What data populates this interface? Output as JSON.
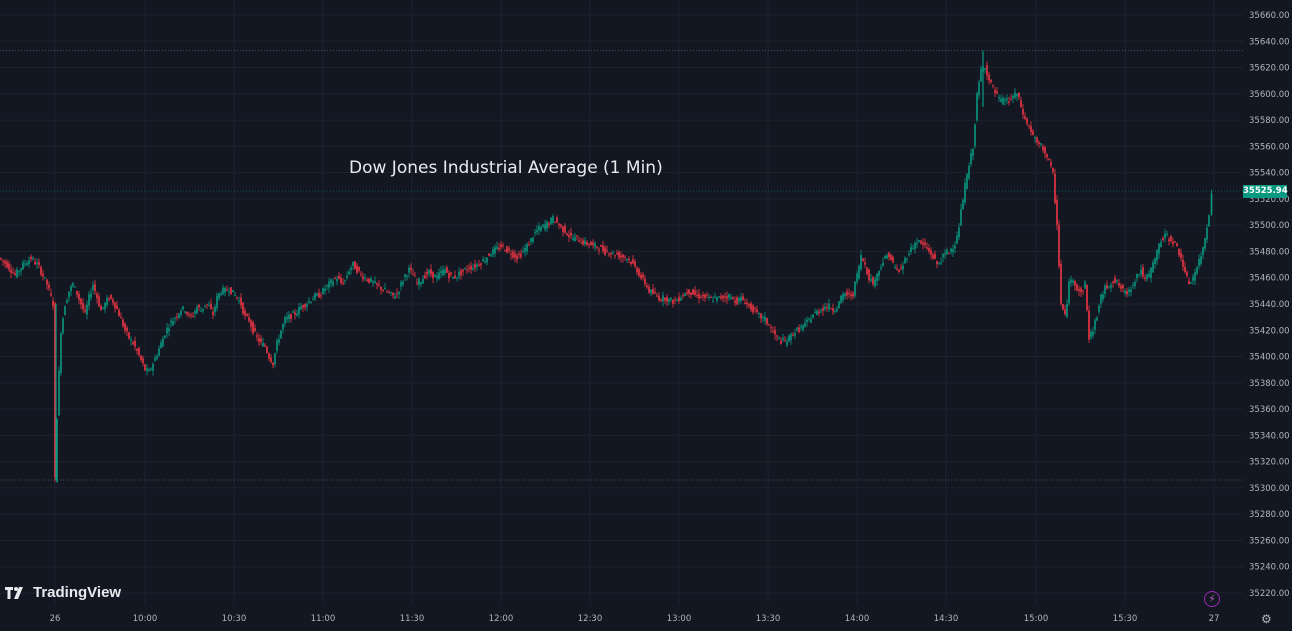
{
  "chart_data": {
    "type": "candlestick",
    "title": "Dow Jones Industrial Average (1 Min)",
    "ylim": [
      35210,
      35670
    ],
    "y_ticks": [
      35220,
      35240,
      35260,
      35280,
      35300,
      35320,
      35340,
      35360,
      35380,
      35400,
      35420,
      35440,
      35460,
      35480,
      35500,
      35520,
      35540,
      35560,
      35580,
      35600,
      35620,
      35640,
      35660
    ],
    "y_tick_labels": [
      "35220.00",
      "35240.00",
      "35260.00",
      "35280.00",
      "35300.00",
      "35320.00",
      "35340.00",
      "35360.00",
      "35380.00",
      "35400.00",
      "35420.00",
      "35440.00",
      "35460.00",
      "35480.00",
      "35500.00",
      "35520.00",
      "35540.00",
      "35560.00",
      "35580.00",
      "35600.00",
      "35620.00",
      "35640.00",
      "35660.00"
    ],
    "x_ticks": [
      "26",
      "10:00",
      "10:30",
      "11:00",
      "11:30",
      "12:00",
      "12:30",
      "13:00",
      "13:30",
      "14:00",
      "14:30",
      "15:00",
      "15:30",
      "27"
    ],
    "last_price": "35525.94",
    "day_high": 35633,
    "day_low": 35306,
    "path": [
      [
        0,
        35475
      ],
      [
        8,
        35470
      ],
      [
        16,
        35462
      ],
      [
        24,
        35470
      ],
      [
        32,
        35475
      ],
      [
        40,
        35468
      ],
      [
        48,
        35455
      ],
      [
        54,
        35440
      ],
      [
        56,
        35306
      ],
      [
        58,
        35355
      ],
      [
        62,
        35420
      ],
      [
        66,
        35440
      ],
      [
        70,
        35450
      ],
      [
        74,
        35455
      ],
      [
        78,
        35448
      ],
      [
        82,
        35440
      ],
      [
        86,
        35432
      ],
      [
        90,
        35445
      ],
      [
        94,
        35455
      ],
      [
        98,
        35445
      ],
      [
        102,
        35435
      ],
      [
        106,
        35440
      ],
      [
        110,
        35445
      ],
      [
        114,
        35442
      ],
      [
        118,
        35436
      ],
      [
        122,
        35428
      ],
      [
        126,
        35420
      ],
      [
        130,
        35414
      ],
      [
        134,
        35410
      ],
      [
        138,
        35404
      ],
      [
        142,
        35397
      ],
      [
        146,
        35390
      ],
      [
        150,
        35388
      ],
      [
        154,
        35395
      ],
      [
        158,
        35402
      ],
      [
        162,
        35410
      ],
      [
        166,
        35418
      ],
      [
        170,
        35424
      ],
      [
        174,
        35428
      ],
      [
        178,
        35432
      ],
      [
        182,
        35436
      ],
      [
        186,
        35436
      ],
      [
        190,
        35430
      ],
      [
        194,
        35432
      ],
      [
        198,
        35438
      ],
      [
        202,
        35435
      ],
      [
        206,
        35440
      ],
      [
        210,
        35438
      ],
      [
        214,
        35432
      ],
      [
        218,
        35445
      ],
      [
        222,
        35450
      ],
      [
        226,
        35450
      ],
      [
        230,
        35452
      ],
      [
        234,
        35448
      ],
      [
        238,
        35445
      ],
      [
        242,
        35440
      ],
      [
        246,
        35430
      ],
      [
        250,
        35428
      ],
      [
        254,
        35420
      ],
      [
        258,
        35414
      ],
      [
        262,
        35410
      ],
      [
        266,
        35408
      ],
      [
        270,
        35400
      ],
      [
        274,
        35395
      ],
      [
        278,
        35410
      ],
      [
        282,
        35420
      ],
      [
        286,
        35428
      ],
      [
        290,
        35430
      ],
      [
        294,
        35432
      ],
      [
        298,
        35434
      ],
      [
        302,
        35438
      ],
      [
        306,
        35440
      ],
      [
        310,
        35442
      ],
      [
        314,
        35445
      ],
      [
        318,
        35446
      ],
      [
        322,
        35448
      ],
      [
        326,
        35452
      ],
      [
        330,
        35455
      ],
      [
        334,
        35458
      ],
      [
        338,
        35460
      ],
      [
        342,
        35456
      ],
      [
        346,
        35458
      ],
      [
        350,
        35466
      ],
      [
        354,
        35470
      ],
      [
        358,
        35466
      ],
      [
        362,
        35462
      ],
      [
        366,
        35460
      ],
      [
        370,
        35458
      ],
      [
        374,
        35456
      ],
      [
        378,
        35454
      ],
      [
        382,
        35452
      ],
      [
        386,
        35450
      ],
      [
        390,
        35448
      ],
      [
        394,
        35446
      ],
      [
        398,
        35448
      ],
      [
        402,
        35455
      ],
      [
        406,
        35462
      ],
      [
        410,
        35466
      ],
      [
        414,
        35462
      ],
      [
        418,
        35456
      ],
      [
        422,
        35458
      ],
      [
        426,
        35462
      ],
      [
        430,
        35464
      ],
      [
        434,
        35462
      ],
      [
        438,
        35460
      ],
      [
        442,
        35464
      ],
      [
        446,
        35466
      ],
      [
        450,
        35462
      ],
      [
        454,
        35460
      ],
      [
        458,
        35462
      ],
      [
        462,
        35464
      ],
      [
        466,
        35466
      ],
      [
        470,
        35468
      ],
      [
        474,
        35468
      ],
      [
        478,
        35470
      ],
      [
        482,
        35472
      ],
      [
        486,
        35474
      ],
      [
        490,
        35478
      ],
      [
        494,
        35480
      ],
      [
        498,
        35482
      ],
      [
        502,
        35484
      ],
      [
        506,
        35482
      ],
      [
        510,
        35480
      ],
      [
        514,
        35478
      ],
      [
        518,
        35476
      ],
      [
        522,
        35478
      ],
      [
        526,
        35482
      ],
      [
        530,
        35486
      ],
      [
        534,
        35492
      ],
      [
        538,
        35496
      ],
      [
        542,
        35498
      ],
      [
        546,
        35500
      ],
      [
        550,
        35502
      ],
      [
        554,
        35505
      ],
      [
        558,
        35502
      ],
      [
        562,
        35498
      ],
      [
        566,
        35496
      ],
      [
        570,
        35492
      ],
      [
        574,
        35490
      ],
      [
        578,
        35490
      ],
      [
        582,
        35488
      ],
      [
        586,
        35486
      ],
      [
        590,
        35486
      ],
      [
        594,
        35484
      ],
      [
        598,
        35484
      ],
      [
        602,
        35482
      ],
      [
        606,
        35480
      ],
      [
        610,
        35480
      ],
      [
        614,
        35478
      ],
      [
        618,
        35478
      ],
      [
        622,
        35476
      ],
      [
        626,
        35476
      ],
      [
        630,
        35474
      ],
      [
        634,
        35470
      ],
      [
        638,
        35466
      ],
      [
        642,
        35460
      ],
      [
        646,
        35456
      ],
      [
        650,
        35450
      ],
      [
        654,
        35448
      ],
      [
        658,
        35446
      ],
      [
        662,
        35444
      ],
      [
        666,
        35445
      ],
      [
        670,
        35443
      ],
      [
        674,
        35442
      ],
      [
        678,
        35443
      ],
      [
        682,
        35446
      ],
      [
        686,
        35448
      ],
      [
        690,
        35450
      ],
      [
        694,
        35448
      ],
      [
        698,
        35446
      ],
      [
        702,
        35446
      ],
      [
        706,
        35445
      ],
      [
        710,
        35444
      ],
      [
        714,
        35444
      ],
      [
        718,
        35444
      ],
      [
        722,
        35445
      ],
      [
        726,
        35446
      ],
      [
        730,
        35446
      ],
      [
        734,
        35444
      ],
      [
        738,
        35442
      ],
      [
        742,
        35444
      ],
      [
        746,
        35442
      ],
      [
        750,
        35438
      ],
      [
        754,
        35436
      ],
      [
        758,
        35432
      ],
      [
        762,
        35430
      ],
      [
        766,
        35428
      ],
      [
        770,
        35424
      ],
      [
        774,
        35418
      ],
      [
        778,
        35414
      ],
      [
        782,
        35412
      ],
      [
        786,
        35411
      ],
      [
        790,
        35414
      ],
      [
        794,
        35418
      ],
      [
        798,
        35420
      ],
      [
        802,
        35422
      ],
      [
        806,
        35424
      ],
      [
        810,
        35428
      ],
      [
        814,
        35432
      ],
      [
        818,
        35434
      ],
      [
        822,
        35436
      ],
      [
        826,
        35438
      ],
      [
        830,
        35438
      ],
      [
        834,
        35436
      ],
      [
        838,
        35438
      ],
      [
        842,
        35444
      ],
      [
        846,
        35448
      ],
      [
        850,
        35446
      ],
      [
        854,
        35448
      ],
      [
        858,
        35462
      ],
      [
        862,
        35476
      ],
      [
        866,
        35470
      ],
      [
        870,
        35460
      ],
      [
        874,
        35456
      ],
      [
        878,
        35462
      ],
      [
        882,
        35470
      ],
      [
        886,
        35475
      ],
      [
        890,
        35478
      ],
      [
        894,
        35470
      ],
      [
        898,
        35465
      ],
      [
        902,
        35466
      ],
      [
        906,
        35474
      ],
      [
        910,
        35480
      ],
      [
        914,
        35484
      ],
      [
        918,
        35488
      ],
      [
        922,
        35486
      ],
      [
        926,
        35484
      ],
      [
        930,
        35480
      ],
      [
        934,
        35476
      ],
      [
        938,
        35470
      ],
      [
        942,
        35474
      ],
      [
        946,
        35478
      ],
      [
        950,
        35480
      ],
      [
        954,
        35484
      ],
      [
        958,
        35490
      ],
      [
        962,
        35510
      ],
      [
        966,
        35530
      ],
      [
        970,
        35545
      ],
      [
        974,
        35560
      ],
      [
        978,
        35598
      ],
      [
        982,
        35618
      ],
      [
        986,
        35622
      ],
      [
        990,
        35610
      ],
      [
        994,
        35604
      ],
      [
        998,
        35598
      ],
      [
        1002,
        35594
      ],
      [
        1006,
        35596
      ],
      [
        1010,
        35594
      ],
      [
        1014,
        35598
      ],
      [
        1018,
        35600
      ],
      [
        1022,
        35590
      ],
      [
        1026,
        35580
      ],
      [
        1030,
        35575
      ],
      [
        1034,
        35568
      ],
      [
        1038,
        35562
      ],
      [
        1042,
        35560
      ],
      [
        1046,
        35556
      ],
      [
        1050,
        35548
      ],
      [
        1054,
        35538
      ],
      [
        1058,
        35500
      ],
      [
        1062,
        35440
      ],
      [
        1066,
        35430
      ],
      [
        1070,
        35455
      ],
      [
        1074,
        35460
      ],
      [
        1078,
        35452
      ],
      [
        1082,
        35448
      ],
      [
        1086,
        35455
      ],
      [
        1090,
        35415
      ],
      [
        1094,
        35420
      ],
      [
        1098,
        35432
      ],
      [
        1102,
        35445
      ],
      [
        1106,
        35452
      ],
      [
        1110,
        35455
      ],
      [
        1114,
        35458
      ],
      [
        1118,
        35456
      ],
      [
        1122,
        35452
      ],
      [
        1126,
        35448
      ],
      [
        1130,
        35450
      ],
      [
        1134,
        35456
      ],
      [
        1138,
        35462
      ],
      [
        1142,
        35466
      ],
      [
        1146,
        35458
      ],
      [
        1150,
        35462
      ],
      [
        1154,
        35470
      ],
      [
        1158,
        35480
      ],
      [
        1162,
        35488
      ],
      [
        1166,
        35492
      ],
      [
        1170,
        35490
      ],
      [
        1174,
        35488
      ],
      [
        1178,
        35482
      ],
      [
        1182,
        35476
      ],
      [
        1186,
        35462
      ],
      [
        1190,
        35456
      ],
      [
        1194,
        35460
      ],
      [
        1198,
        35468
      ],
      [
        1202,
        35476
      ],
      [
        1206,
        35490
      ],
      [
        1210,
        35510
      ],
      [
        1213,
        35526
      ]
    ]
  },
  "branding": {
    "logo_text": "TradingView"
  },
  "icons": {
    "bolt": "lightning-icon",
    "settings": "gear-icon"
  },
  "colors": {
    "background": "#131722",
    "up": "#089981",
    "down": "#f23645",
    "grid": "#1e222d",
    "axis_text": "#b2b5be"
  }
}
